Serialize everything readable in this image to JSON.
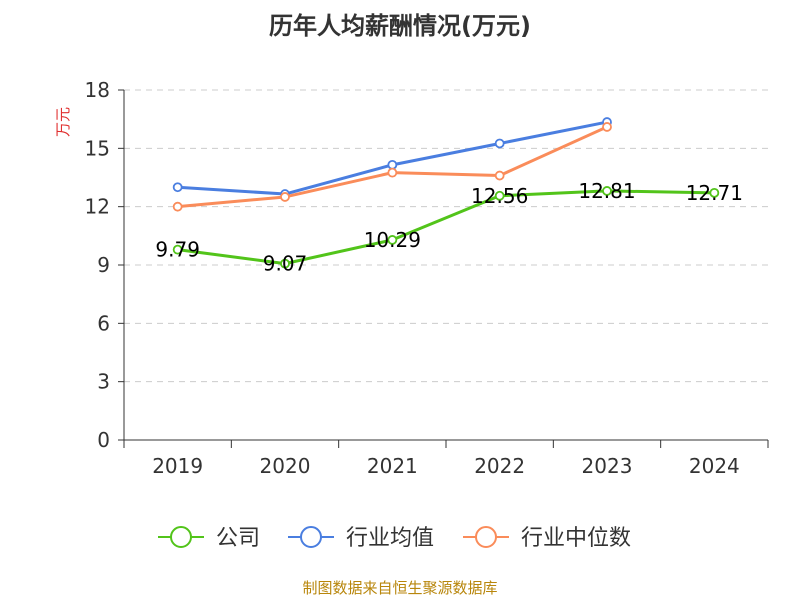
{
  "title": "历年人均薪酬情况(万元)",
  "source": "制图数据来自恒生聚源数据库",
  "colors": {
    "公司": "#52c41a",
    "行业均值": "#4a7ee0",
    "行业中位数": "#fa8c5a",
    "axis": "#333333",
    "grid": "#cccccc",
    "ylabel": "#e03030"
  },
  "chart_data": {
    "type": "line",
    "title": "历年人均薪酬情况(万元)",
    "xlabel": "",
    "ylabel": "万元",
    "categories": [
      "2019",
      "2020",
      "2021",
      "2022",
      "2023",
      "2024"
    ],
    "yticks": [
      "0",
      "3",
      "6",
      "9",
      "12",
      "15",
      "18"
    ],
    "ylim": [
      0,
      18
    ],
    "grid": true,
    "legend_position": "bottom-center",
    "series": [
      {
        "name": "公司",
        "values": [
          9.79,
          9.07,
          10.29,
          12.56,
          12.81,
          12.71
        ],
        "labels": [
          "9.79",
          "9.07",
          "10.29",
          "12.56",
          "12.81",
          "12.71"
        ]
      },
      {
        "name": "行业均值",
        "values": [
          13.0,
          12.65,
          14.15,
          15.25,
          16.35,
          null
        ],
        "labels": []
      },
      {
        "name": "行业中位数",
        "values": [
          12.0,
          12.5,
          13.75,
          13.6,
          16.1,
          null
        ],
        "labels": []
      }
    ]
  }
}
